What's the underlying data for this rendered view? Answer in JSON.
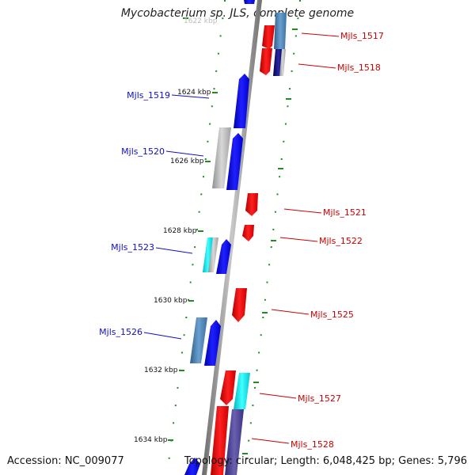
{
  "title": "Mycobacterium sp. JLS, complete genome",
  "accession": "Accession: NC_009077",
  "summary": "Topology: circular; Length: 6,048,425 bp; Genes: 5,796",
  "colors": {
    "backbone": "#8a8a8a",
    "ruler_tick": "#228b22",
    "forward_label": "#1010c0",
    "reverse_label": "#cc0000",
    "blue": "#0000ee",
    "red": "#ee0000",
    "gray": "#b8b8b8",
    "cyan": "#00e5ee",
    "steel": "#4682b4",
    "navy": "#000080",
    "slate": "#483d8b"
  },
  "ruler_labels": [
    "1622 kbp",
    "1624 kbp",
    "1626 kbp",
    "1628 kbp",
    "1630 kbp",
    "1632 kbp",
    "1634 kbp"
  ],
  "gene_labels_forward": [
    "Mjls_1519",
    "Mjls_1520",
    "Mjls_1523",
    "Mjls_1526"
  ],
  "gene_labels_reverse": [
    "Mjls_1517",
    "Mjls_1518",
    "Mjls_1521",
    "Mjls_1522",
    "Mjls_1525",
    "Mjls_1527",
    "Mjls_1528"
  ]
}
